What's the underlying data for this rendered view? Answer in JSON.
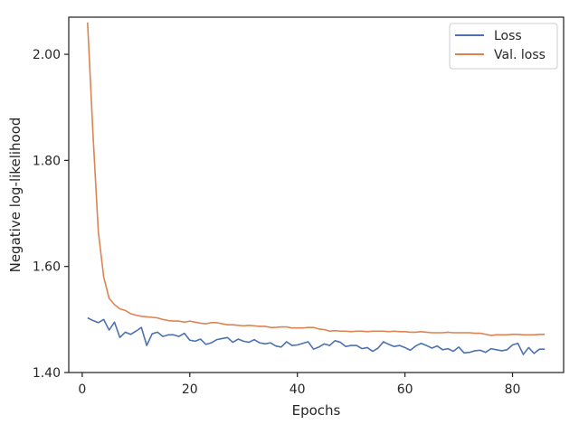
{
  "chart_data": {
    "type": "line",
    "title": "",
    "xlabel": "Epochs",
    "ylabel": "Negative log-likelihood",
    "xlim": [
      -2.5,
      89.5
    ],
    "ylim": [
      1.4,
      2.07
    ],
    "xticks": [
      0,
      20,
      40,
      60,
      80
    ],
    "xtick_labels": [
      "0",
      "20",
      "40",
      "60",
      "80"
    ],
    "yticks": [
      1.4,
      1.6,
      1.8,
      2.0
    ],
    "ytick_labels": [
      "1.40",
      "1.60",
      "1.80",
      "2.00"
    ],
    "grid": false,
    "legend_position": "top-right",
    "series": [
      {
        "name": "Loss",
        "color": "#4c72b0",
        "x": [
          1,
          2,
          3,
          4,
          5,
          6,
          7,
          8,
          9,
          10,
          11,
          12,
          13,
          14,
          15,
          16,
          17,
          18,
          19,
          20,
          21,
          22,
          23,
          24,
          25,
          26,
          27,
          28,
          29,
          30,
          31,
          32,
          33,
          34,
          35,
          36,
          37,
          38,
          39,
          40,
          41,
          42,
          43,
          44,
          45,
          46,
          47,
          48,
          49,
          50,
          51,
          52,
          53,
          54,
          55,
          56,
          57,
          58,
          59,
          60,
          61,
          62,
          63,
          64,
          65,
          66,
          67,
          68,
          69,
          70,
          71,
          72,
          73,
          74,
          75,
          76,
          77,
          78,
          79,
          80,
          81,
          82,
          83,
          84,
          85,
          86
        ],
        "values": [
          1.503,
          1.498,
          1.494,
          1.5,
          1.48,
          1.495,
          1.466,
          1.476,
          1.472,
          1.478,
          1.485,
          1.451,
          1.473,
          1.476,
          1.468,
          1.471,
          1.471,
          1.468,
          1.474,
          1.461,
          1.459,
          1.463,
          1.453,
          1.456,
          1.462,
          1.464,
          1.466,
          1.457,
          1.463,
          1.459,
          1.457,
          1.462,
          1.456,
          1.454,
          1.456,
          1.45,
          1.448,
          1.458,
          1.451,
          1.452,
          1.455,
          1.458,
          1.444,
          1.448,
          1.454,
          1.451,
          1.46,
          1.457,
          1.449,
          1.451,
          1.451,
          1.445,
          1.447,
          1.44,
          1.446,
          1.458,
          1.453,
          1.449,
          1.451,
          1.447,
          1.442,
          1.45,
          1.455,
          1.451,
          1.446,
          1.45,
          1.443,
          1.445,
          1.44,
          1.448,
          1.437,
          1.438,
          1.441,
          1.442,
          1.438,
          1.445,
          1.443,
          1.441,
          1.443,
          1.452,
          1.455,
          1.434,
          1.447,
          1.436,
          1.444,
          1.444
        ]
      },
      {
        "name": "Val. loss",
        "color": "#dd8452",
        "x": [
          1,
          2,
          3,
          4,
          5,
          6,
          7,
          8,
          9,
          10,
          11,
          12,
          13,
          14,
          15,
          16,
          17,
          18,
          19,
          20,
          21,
          22,
          23,
          24,
          25,
          26,
          27,
          28,
          29,
          30,
          31,
          32,
          33,
          34,
          35,
          36,
          37,
          38,
          39,
          40,
          41,
          42,
          43,
          44,
          45,
          46,
          47,
          48,
          49,
          50,
          51,
          52,
          53,
          54,
          55,
          56,
          57,
          58,
          59,
          60,
          61,
          62,
          63,
          64,
          65,
          66,
          67,
          68,
          69,
          70,
          71,
          72,
          73,
          74,
          75,
          76,
          77,
          78,
          79,
          80,
          81,
          82,
          83,
          84,
          85,
          86
        ],
        "values": [
          2.06,
          1.85,
          1.665,
          1.58,
          1.54,
          1.528,
          1.52,
          1.517,
          1.511,
          1.508,
          1.506,
          1.505,
          1.504,
          1.503,
          1.5,
          1.498,
          1.497,
          1.497,
          1.495,
          1.497,
          1.495,
          1.493,
          1.492,
          1.494,
          1.494,
          1.492,
          1.49,
          1.49,
          1.489,
          1.488,
          1.489,
          1.488,
          1.487,
          1.487,
          1.485,
          1.485,
          1.486,
          1.486,
          1.484,
          1.484,
          1.484,
          1.485,
          1.485,
          1.482,
          1.481,
          1.478,
          1.479,
          1.478,
          1.478,
          1.477,
          1.478,
          1.478,
          1.477,
          1.478,
          1.478,
          1.478,
          1.477,
          1.478,
          1.477,
          1.477,
          1.476,
          1.476,
          1.477,
          1.476,
          1.475,
          1.475,
          1.475,
          1.476,
          1.475,
          1.475,
          1.475,
          1.475,
          1.474,
          1.474,
          1.472,
          1.47,
          1.471,
          1.471,
          1.471,
          1.472,
          1.472,
          1.471,
          1.471,
          1.471,
          1.472,
          1.472
        ]
      }
    ]
  }
}
